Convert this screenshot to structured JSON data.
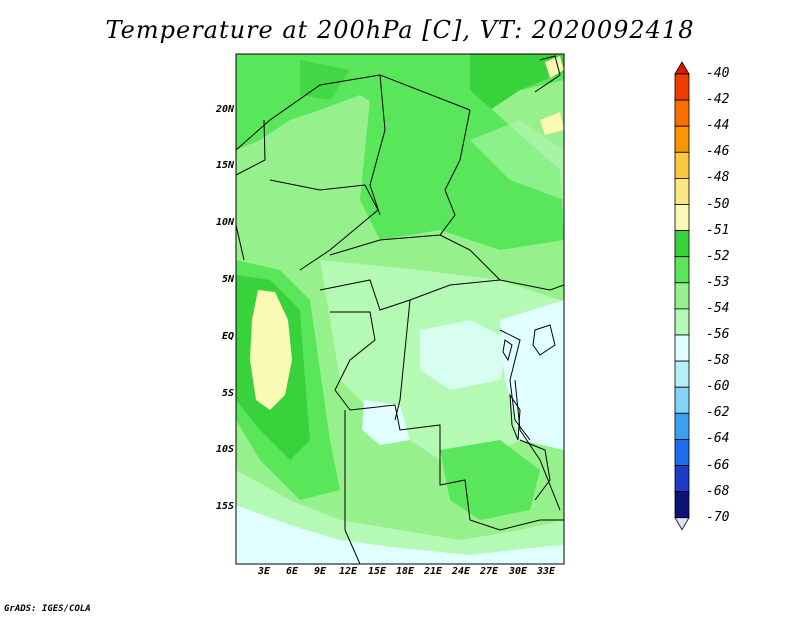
{
  "title": "Temperature at 200hPa [C], VT: 2020092418",
  "credit": "GrADS: IGES/COLA",
  "map": {
    "type": "filled-contour-map",
    "variable": "Temperature at 200hPa",
    "units": "C",
    "valid_time": "2020092418",
    "region": "Central Africa",
    "lat_labels": [
      "20N",
      "15N",
      "10N",
      "5N",
      "EQ",
      "5S",
      "10S",
      "15S"
    ],
    "lon_labels": [
      "3E",
      "6E",
      "9E",
      "12E",
      "15E",
      "18E",
      "21E",
      "24E",
      "27E",
      "30E",
      "33E"
    ]
  },
  "colorbar": {
    "levels": [
      "-40",
      "-42",
      "-44",
      "-46",
      "-48",
      "-50",
      "-51",
      "-52",
      "-53",
      "-54",
      "-56",
      "-58",
      "-60",
      "-62",
      "-64",
      "-66",
      "-68",
      "-70"
    ],
    "colors": [
      "#e11400",
      "#f03c00",
      "#fa6e00",
      "#fa9600",
      "#fac83c",
      "#fae682",
      "#fafab4",
      "#37d23c",
      "#5ae65a",
      "#96f08c",
      "#b4fab4",
      "#e1ffff",
      "#b4f0fa",
      "#82d2fa",
      "#3ca0f0",
      "#1e6eeb",
      "#1e3cc8",
      "#0a1478",
      "#e1e1f5"
    ]
  }
}
